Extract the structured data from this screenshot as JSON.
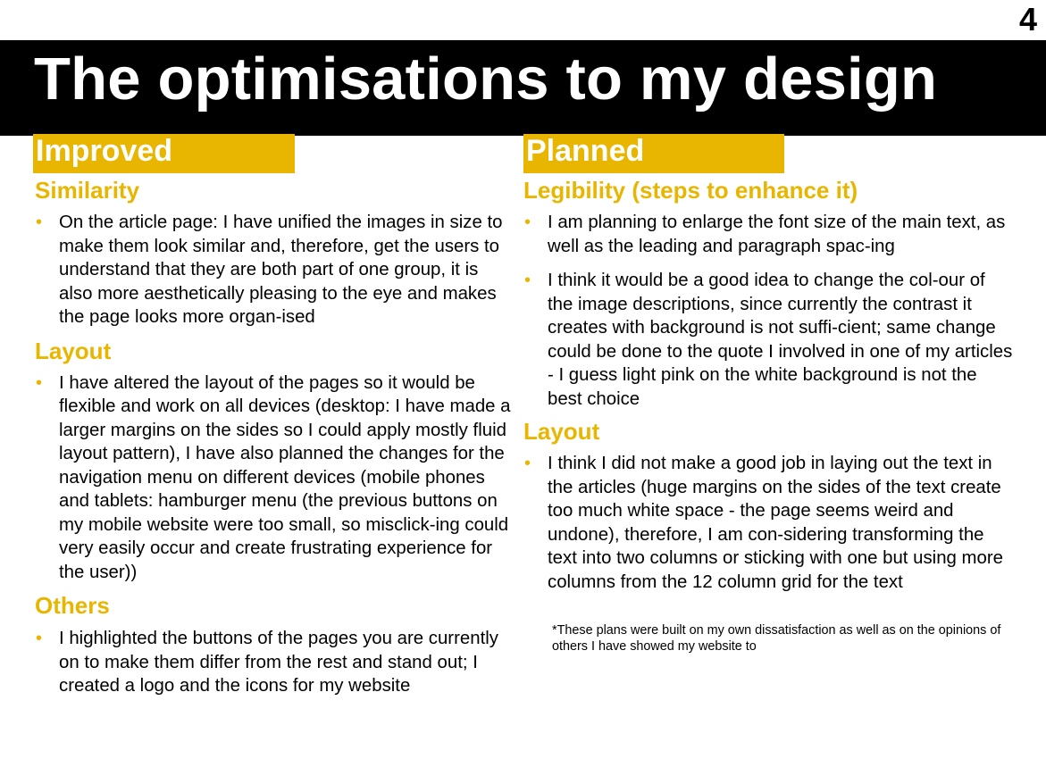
{
  "page_number": "4",
  "title": "The optimisations to my design",
  "colors": {
    "accent": "#E8B600",
    "title_bar": "#000000"
  },
  "improved": {
    "heading": "Improved",
    "sections": [
      {
        "title": "Similarity",
        "items": [
          "On the article page: I have unified the images in size to make them look similar and, therefore, get the users to understand that they are both part of one group, it is also more aesthetically pleasing to the eye and makes the page looks more organ-ised"
        ]
      },
      {
        "title": "Layout",
        "items": [
          "I have altered the layout of the pages so it would be flexible and work on all devices (desktop: I have made a larger margins on the sides so I could apply mostly fluid layout pattern), I have also planned the changes for the navigation menu on different devices (mobile phones and tablets: hamburger menu (the previous buttons on my mobile website were too small, so misclick-ing could very easily occur and create frustrating experience for the user))"
        ]
      },
      {
        "title": "Others",
        "items": [
          "I highlighted the buttons of the pages you are currently on to make them differ from the rest and stand out; I created a logo and the icons for my website"
        ]
      }
    ]
  },
  "planned": {
    "heading": "Planned",
    "sections": [
      {
        "title": "Legibility (steps to enhance it)",
        "items": [
          "I am planning to enlarge the font size of the main text, as well as the leading and paragraph spac-ing",
          "I think it would be a good idea to change the col-our of the image descriptions, since currently the contrast it creates with background is not suffi-cient; same change could be done to the quote I involved in one of my articles - I guess light pink on the white background is not the best choice"
        ]
      },
      {
        "title": "Layout",
        "items": [
          "I think I did not make a good job in laying out the text in the articles (huge margins on the sides of the text create too much white space - the page seems weird and undone), therefore, I am con-sidering transforming the text into two columns or sticking with one but using more columns from the 12 column grid for the text"
        ]
      }
    ],
    "note": "*These plans were built on my own dissatisfaction as well as on the opinions of others I have showed my website to"
  }
}
